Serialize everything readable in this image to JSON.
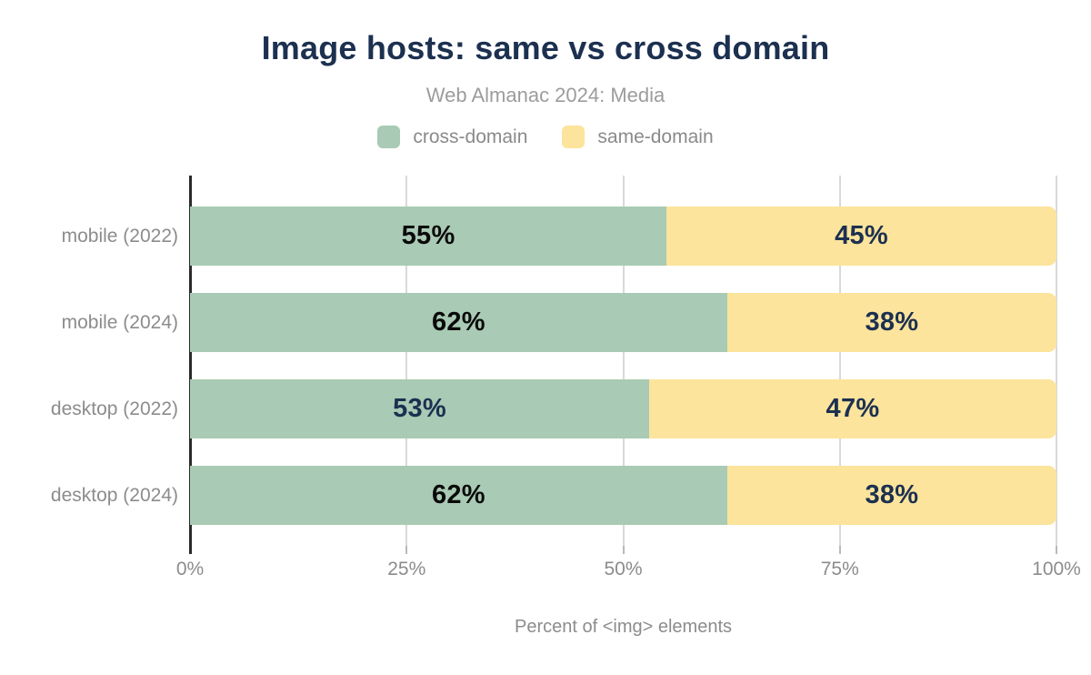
{
  "chart_data": {
    "type": "bar",
    "orientation": "horizontal-stacked",
    "title": "Image hosts: same vs cross domain",
    "subtitle": "Web Almanac 2024: Media",
    "xlabel": "Percent of <img> elements",
    "xlim": [
      0,
      100
    ],
    "grid": "vertical",
    "legend_position": "top",
    "x_ticks": [
      {
        "value": 0,
        "label": "0%"
      },
      {
        "value": 25,
        "label": "25%"
      },
      {
        "value": 50,
        "label": "50%"
      },
      {
        "value": 75,
        "label": "75%"
      },
      {
        "value": 100,
        "label": "100%"
      }
    ],
    "categories": [
      "mobile (2022)",
      "mobile (2024)",
      "desktop (2022)",
      "desktop (2024)"
    ],
    "series": [
      {
        "name": "cross-domain",
        "color": "#a9cab4",
        "values": [
          55,
          62,
          53,
          62
        ],
        "value_labels": [
          "55%",
          "62%",
          "53%",
          "62%"
        ],
        "label_colors": [
          "#0a0a0a",
          "#0a0a0a",
          "#1c3050",
          "#0a0a0a"
        ]
      },
      {
        "name": "same-domain",
        "color": "#fce49c",
        "values": [
          45,
          38,
          47,
          38
        ],
        "value_labels": [
          "45%",
          "38%",
          "47%",
          "38%"
        ],
        "label_colors": [
          "#1c3050",
          "#1c3050",
          "#1c3050",
          "#1c3050"
        ]
      }
    ]
  },
  "colors": {
    "title_text": "#1c3050",
    "muted_text": "#8c8c8c",
    "subtitle_text": "#9c9c9c",
    "axis_line": "#2a2a2a",
    "gridline": "#d9d9d9"
  }
}
